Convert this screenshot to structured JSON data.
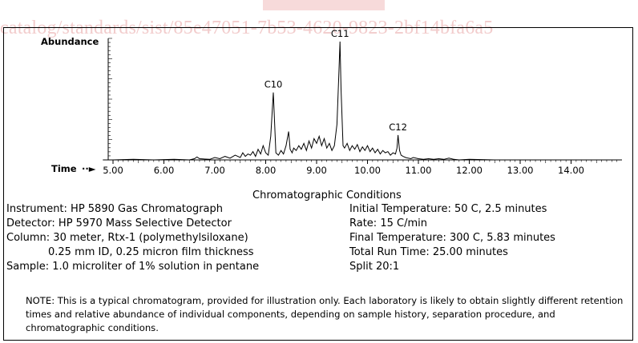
{
  "watermark": {
    "text": "catalog/standards/sist/85e47051-7b53-4620-9823-2bf14bfa6a5"
  },
  "chart_data": {
    "type": "line",
    "title": "",
    "ylabel": "Abundance",
    "xlabel": "Time",
    "xlim": [
      4.8,
      15.0
    ],
    "ylim": [
      0,
      100
    ],
    "xticks": [
      "5.00",
      "6.00",
      "7.00",
      "8.00",
      "9.00",
      "10.00",
      "11.00",
      "12.00",
      "13.00",
      "14.00"
    ],
    "grid": false,
    "peaks": [
      {
        "label": "C10",
        "x": 8.15,
        "y": 57
      },
      {
        "label": "C11",
        "x": 9.46,
        "y": 100
      },
      {
        "label": "C12",
        "x": 10.6,
        "y": 21
      }
    ],
    "x": [
      4.8,
      5.0,
      5.4,
      5.8,
      6.2,
      6.5,
      6.6,
      6.65,
      6.7,
      6.9,
      7.0,
      7.1,
      7.2,
      7.3,
      7.4,
      7.5,
      7.55,
      7.6,
      7.65,
      7.7,
      7.75,
      7.8,
      7.85,
      7.9,
      7.95,
      8.0,
      8.05,
      8.1,
      8.15,
      8.2,
      8.25,
      8.3,
      8.35,
      8.4,
      8.45,
      8.48,
      8.52,
      8.55,
      8.6,
      8.65,
      8.7,
      8.75,
      8.8,
      8.85,
      8.9,
      8.95,
      9.0,
      9.05,
      9.1,
      9.15,
      9.2,
      9.25,
      9.3,
      9.35,
      9.4,
      9.44,
      9.46,
      9.48,
      9.52,
      9.55,
      9.6,
      9.65,
      9.7,
      9.75,
      9.8,
      9.85,
      9.9,
      9.95,
      10.0,
      10.05,
      10.1,
      10.15,
      10.2,
      10.25,
      10.3,
      10.35,
      10.4,
      10.45,
      10.5,
      10.55,
      10.58,
      10.6,
      10.63,
      10.66,
      10.7,
      10.75,
      10.8,
      10.85,
      10.9,
      11.0,
      11.1,
      11.2,
      11.3,
      11.4,
      11.5,
      11.6,
      11.7,
      11.8,
      12.0,
      12.5,
      13.0,
      14.0,
      15.0
    ],
    "y": [
      0,
      0,
      0.5,
      0,
      0.5,
      0,
      1,
      2.5,
      1,
      0.5,
      2,
      1,
      3,
      1.5,
      4,
      2,
      6,
      3,
      5,
      4,
      7,
      3,
      9,
      5,
      12,
      6,
      4,
      20,
      57,
      6,
      4,
      8,
      5,
      12,
      24,
      9,
      6,
      10,
      8,
      12,
      9,
      14,
      8,
      16,
      10,
      18,
      14,
      20,
      12,
      18,
      10,
      14,
      8,
      12,
      30,
      75,
      100,
      60,
      12,
      10,
      14,
      8,
      12,
      9,
      13,
      7,
      11,
      8,
      12,
      7,
      10,
      6,
      9,
      5,
      8,
      6,
      7,
      4,
      6,
      5,
      10,
      21,
      8,
      4,
      3,
      2,
      1.5,
      1,
      2,
      1,
      0.5,
      1,
      0.5,
      1,
      0.5,
      1.5,
      0.5,
      0,
      0.5,
      0,
      0,
      0,
      0
    ]
  },
  "conditions": {
    "heading": "Chromatographic Conditions",
    "instrument": "Instrument: HP 5890 Gas Chromatograph",
    "detector": "Detector: HP 5970 Mass Selective Detector",
    "column": "Column: 30 meter, Rtx-1 (polymethylsiloxane)",
    "column_detail": "0.25 mm ID, 0.25 micron film thickness",
    "sample": "Sample: 1.0 microliter of 1% solution in pentane",
    "initial_temp": "Initial Temperature: 50 C, 2.5 minutes",
    "rate": "Rate: 15 C/min",
    "final_temp": "Final Temperature: 300 C, 5.83 minutes",
    "run_time": "Total Run Time: 25.00 minutes",
    "split": "Split 20:1"
  },
  "note": "NOTE: This is a typical chromatogram, provided for illustration only. Each laboratory is likely to obtain slightly different retention times and relative abundance of individual components, depending on sample history, separation procedure, and chromatographic conditions."
}
